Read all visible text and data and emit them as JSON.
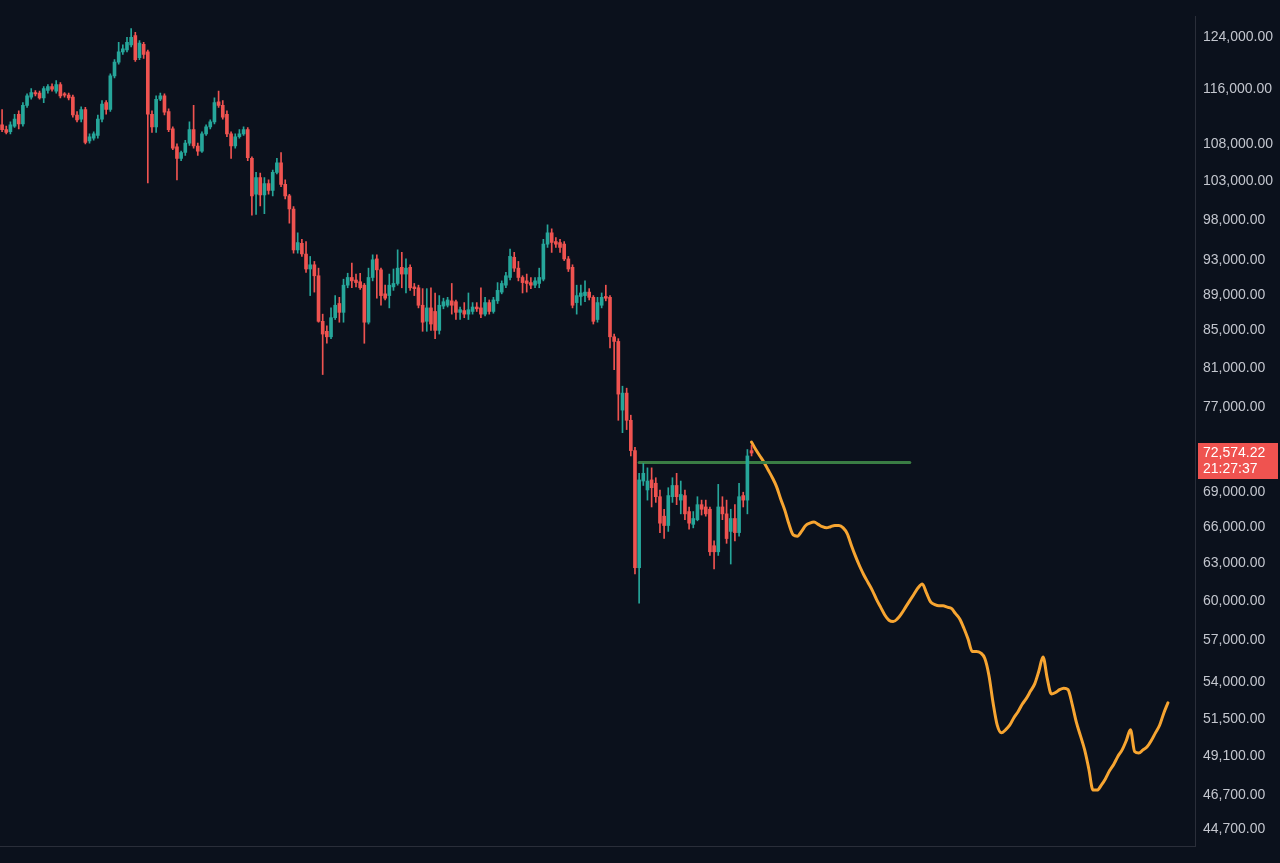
{
  "chart_data": {
    "type": "candlestick",
    "categories": [
      null,
      null,
      null,
      null,
      null,
      null,
      null,
      null,
      null,
      null,
      null,
      null,
      null,
      null,
      null,
      null,
      null,
      null,
      null,
      null,
      null,
      null,
      null,
      null,
      null,
      null,
      null,
      null,
      null,
      null,
      null,
      null,
      null,
      null,
      null,
      null,
      null,
      null,
      null,
      null,
      null,
      null,
      null,
      null,
      null,
      null,
      null,
      null,
      null,
      null,
      null,
      null,
      null,
      null,
      null,
      null,
      null,
      null,
      null,
      null,
      null,
      null,
      null,
      null,
      null,
      null,
      null,
      null,
      null,
      null,
      null,
      null,
      null,
      null,
      null,
      null,
      null,
      null,
      null,
      null,
      null,
      null,
      null,
      null,
      null,
      null,
      null,
      null,
      null,
      null,
      null,
      null,
      null,
      null,
      null,
      null,
      null,
      null,
      null,
      null,
      null,
      null,
      null,
      null,
      null,
      null,
      null,
      null,
      null,
      null,
      null,
      null,
      null,
      null,
      null,
      null,
      null,
      null,
      null,
      null,
      null,
      null,
      null,
      null,
      null,
      null,
      null,
      null,
      null,
      null,
      null,
      null,
      null,
      null,
      null,
      null,
      null,
      null,
      null,
      null,
      null,
      null,
      null,
      null,
      null,
      null,
      null,
      null,
      null,
      null,
      null,
      null,
      null,
      null,
      null,
      null,
      null,
      null,
      null,
      null,
      null,
      null,
      null,
      null,
      null,
      null,
      null,
      null,
      null,
      null,
      null,
      null,
      null,
      null,
      null,
      null,
      null,
      null,
      null,
      null,
      null,
      null,
      null,
      null,
      null,
      null,
      null,
      null,
      null,
      null,
      null,
      null,
      null,
      null,
      null,
      null,
      null,
      null,
      null,
      null,
      null,
      null,
      null,
      null,
      null,
      null,
      null,
      null,
      null,
      null,
      null,
      null,
      null,
      null,
      null,
      null,
      null,
      null,
      null,
      null,
      null,
      null,
      null,
      null,
      null,
      null,
      null,
      null,
      null,
      null,
      null,
      null,
      null,
      null,
      null,
      null,
      null,
      null,
      null,
      null,
      null,
      null,
      null,
      null,
      null,
      null,
      null,
      null,
      null,
      null,
      null,
      null,
      null,
      null,
      null,
      null,
      null,
      null,
      null,
      null,
      null,
      null,
      null,
      null,
      null,
      null,
      null,
      null,
      null,
      null,
      null,
      null,
      null,
      null,
      null,
      null,
      null,
      null,
      null,
      null,
      null,
      null,
      null,
      null,
      null,
      null,
      null
    ],
    "ohlc": [
      [
        110800,
        113000,
        109800,
        110100
      ],
      [
        110100,
        110600,
        109500,
        109700
      ],
      [
        109800,
        111200,
        109500,
        110800
      ],
      [
        110600,
        112300,
        110400,
        111600
      ],
      [
        112300,
        112800,
        110200,
        110900
      ],
      [
        110900,
        114000,
        110600,
        113600
      ],
      [
        113600,
        115300,
        113300,
        115000
      ],
      [
        114800,
        116100,
        114500,
        115500
      ],
      [
        115500,
        115800,
        115000,
        115300
      ],
      [
        115400,
        115700,
        114500,
        114700
      ],
      [
        114700,
        116400,
        114000,
        116100
      ],
      [
        115800,
        116700,
        115400,
        116400
      ],
      [
        116400,
        116800,
        115700,
        116000
      ],
      [
        115700,
        117300,
        115400,
        116700
      ],
      [
        116700,
        117000,
        114700,
        115000
      ],
      [
        115300,
        115500,
        114800,
        115100
      ],
      [
        115100,
        115400,
        114400,
        114700
      ],
      [
        114800,
        115100,
        111900,
        112200
      ],
      [
        112200,
        112700,
        111200,
        111500
      ],
      [
        111600,
        113400,
        111200,
        113000
      ],
      [
        113000,
        113300,
        108100,
        108300
      ],
      [
        108500,
        109500,
        108200,
        109100
      ],
      [
        108900,
        109800,
        108600,
        109500
      ],
      [
        109300,
        112200,
        108900,
        111600
      ],
      [
        111600,
        114300,
        111200,
        113800
      ],
      [
        114000,
        114300,
        112300,
        113000
      ],
      [
        113000,
        118300,
        112700,
        118000
      ],
      [
        118000,
        120500,
        117700,
        120100
      ],
      [
        120100,
        123200,
        119800,
        121700
      ],
      [
        121700,
        122800,
        121300,
        122200
      ],
      [
        122000,
        124000,
        121700,
        123200
      ],
      [
        122800,
        125400,
        122500,
        124000
      ],
      [
        124300,
        124800,
        120200,
        120500
      ],
      [
        120800,
        123500,
        120500,
        123100
      ],
      [
        122900,
        123200,
        120700,
        121300
      ],
      [
        121700,
        122000,
        102800,
        112300
      ],
      [
        112300,
        112800,
        109700,
        110500
      ],
      [
        110500,
        115000,
        109700,
        114500
      ],
      [
        114500,
        115400,
        114300,
        115000
      ],
      [
        115000,
        115300,
        112200,
        112600
      ],
      [
        112700,
        113100,
        109800,
        110100
      ],
      [
        110200,
        110500,
        107300,
        107500
      ],
      [
        107700,
        108100,
        103200,
        106100
      ],
      [
        106100,
        107100,
        105800,
        106900
      ],
      [
        106900,
        108600,
        106500,
        108200
      ],
      [
        108200,
        111200,
        107900,
        110100
      ],
      [
        110100,
        113600,
        107500,
        107800
      ],
      [
        107800,
        108200,
        106500,
        107100
      ],
      [
        107100,
        109800,
        106900,
        109500
      ],
      [
        109500,
        110800,
        109300,
        110500
      ],
      [
        110500,
        111500,
        110200,
        111200
      ],
      [
        111200,
        114700,
        110900,
        114000
      ],
      [
        114100,
        115700,
        113300,
        113600
      ],
      [
        113600,
        114300,
        111600,
        111900
      ],
      [
        112300,
        112800,
        109100,
        109500
      ],
      [
        109500,
        109800,
        106100,
        107800
      ],
      [
        107800,
        109500,
        107500,
        109100
      ],
      [
        109100,
        110100,
        108900,
        109500
      ],
      [
        109500,
        110500,
        109300,
        110100
      ],
      [
        110100,
        110400,
        105800,
        106200
      ],
      [
        106100,
        106300,
        98600,
        101100
      ],
      [
        101300,
        104200,
        98700,
        103500
      ],
      [
        103500,
        104100,
        99800,
        101200
      ],
      [
        101200,
        103500,
        98800,
        102700
      ],
      [
        102700,
        103200,
        101300,
        101800
      ],
      [
        101800,
        104500,
        101100,
        104200
      ],
      [
        104200,
        106100,
        104000,
        105500
      ],
      [
        105500,
        106900,
        102300,
        102600
      ],
      [
        102600,
        103200,
        100700,
        101100
      ],
      [
        101100,
        101300,
        97600,
        99400
      ],
      [
        99400,
        99700,
        93900,
        94300
      ],
      [
        94300,
        96400,
        93900,
        95200
      ],
      [
        95100,
        95600,
        93500,
        93800
      ],
      [
        93800,
        95300,
        91600,
        92000
      ],
      [
        92000,
        93500,
        88900,
        92500
      ],
      [
        92500,
        92900,
        89300,
        91200
      ],
      [
        91200,
        92100,
        85900,
        86000
      ],
      [
        86000,
        86800,
        80300,
        84600
      ],
      [
        84900,
        85500,
        83600,
        84300
      ],
      [
        84300,
        87500,
        84100,
        86400
      ],
      [
        86400,
        88900,
        86200,
        87800
      ],
      [
        88000,
        88700,
        85900,
        87000
      ],
      [
        87000,
        90800,
        85900,
        90100
      ],
      [
        90100,
        91500,
        89800,
        91000
      ],
      [
        91000,
        92700,
        89800,
        90600
      ],
      [
        90700,
        91400,
        89900,
        90400
      ],
      [
        90500,
        91500,
        89600,
        89800
      ],
      [
        90100,
        90300,
        83600,
        85900
      ],
      [
        85900,
        92100,
        85700,
        91000
      ],
      [
        91000,
        93700,
        90600,
        93100
      ],
      [
        93200,
        93700,
        88600,
        91900
      ],
      [
        91900,
        92100,
        87800,
        88900
      ],
      [
        89100,
        90100,
        88400,
        88600
      ],
      [
        88900,
        91400,
        87500,
        90100
      ],
      [
        89900,
        92000,
        89500,
        90300
      ],
      [
        90300,
        94300,
        90100,
        92100
      ],
      [
        92200,
        94000,
        89800,
        91400
      ],
      [
        91400,
        93200,
        89200,
        92100
      ],
      [
        92200,
        92500,
        89500,
        89800
      ],
      [
        89900,
        90300,
        88900,
        89700
      ],
      [
        89800,
        90100,
        87500,
        87800
      ],
      [
        87800,
        89700,
        84900,
        85900
      ],
      [
        86000,
        89700,
        84900,
        87500
      ],
      [
        87500,
        89800,
        85000,
        85700
      ],
      [
        87100,
        89200,
        84100,
        85000
      ],
      [
        85000,
        88900,
        84600,
        87800
      ],
      [
        87700,
        88600,
        87400,
        88200
      ],
      [
        87800,
        88700,
        87600,
        88400
      ],
      [
        88300,
        90300,
        86800,
        87800
      ],
      [
        88200,
        88400,
        86200,
        87000
      ],
      [
        87000,
        87600,
        86200,
        87300
      ],
      [
        87200,
        88100,
        86400,
        86800
      ],
      [
        86800,
        89200,
        86200,
        87300
      ],
      [
        87100,
        88100,
        86800,
        87600
      ],
      [
        87600,
        88100,
        87100,
        87400
      ],
      [
        87500,
        89800,
        86400,
        86800
      ],
      [
        86800,
        88700,
        86600,
        88100
      ],
      [
        88100,
        88400,
        86800,
        87100
      ],
      [
        87100,
        88700,
        86900,
        88400
      ],
      [
        88300,
        90400,
        88000,
        89500
      ],
      [
        89300,
        90600,
        89100,
        90300
      ],
      [
        90100,
        91600,
        89800,
        91200
      ],
      [
        91000,
        94400,
        90700,
        93500
      ],
      [
        93400,
        94000,
        91700,
        92100
      ],
      [
        92100,
        92900,
        90600,
        91000
      ],
      [
        91000,
        91200,
        89200,
        90400
      ],
      [
        90600,
        91400,
        89300,
        90300
      ],
      [
        90400,
        91000,
        89700,
        90100
      ],
      [
        90100,
        91000,
        89800,
        90600
      ],
      [
        90300,
        92100,
        89800,
        91000
      ],
      [
        90800,
        95600,
        90600,
        95000
      ],
      [
        95000,
        97400,
        94600,
        96400
      ],
      [
        96400,
        96900,
        94000,
        95200
      ],
      [
        95300,
        95800,
        94600,
        95000
      ],
      [
        95200,
        95600,
        94000,
        94600
      ],
      [
        95000,
        95300,
        93000,
        93200
      ],
      [
        93200,
        93500,
        91700,
        92000
      ],
      [
        92200,
        92500,
        87500,
        87800
      ],
      [
        88100,
        90100,
        86800,
        88900
      ],
      [
        88800,
        90100,
        87800,
        89200
      ],
      [
        88900,
        90600,
        88200,
        89300
      ],
      [
        89300,
        89700,
        88400,
        88700
      ],
      [
        88700,
        88900,
        85700,
        86000
      ],
      [
        86200,
        88700,
        85900,
        88100
      ],
      [
        87800,
        89200,
        87500,
        88700
      ],
      [
        88800,
        90100,
        88300,
        88600
      ],
      [
        88700,
        88900,
        83100,
        84300
      ],
      [
        84300,
        84600,
        80800,
        83800
      ],
      [
        83800,
        84100,
        75700,
        78300
      ],
      [
        76700,
        79100,
        74500,
        78400
      ],
      [
        78400,
        78900,
        74800,
        75700
      ],
      [
        75700,
        76200,
        72300,
        72800
      ],
      [
        72800,
        73100,
        62100,
        62600
      ],
      [
        62600,
        70700,
        59800,
        70100
      ],
      [
        70000,
        71600,
        69600,
        70700
      ],
      [
        69200,
        71200,
        68300,
        70000
      ],
      [
        70100,
        71200,
        67700,
        69400
      ],
      [
        69800,
        70300,
        68100,
        68600
      ],
      [
        68600,
        69200,
        65500,
        66300
      ],
      [
        66900,
        67500,
        65000,
        66100
      ],
      [
        66100,
        69400,
        65600,
        68700
      ],
      [
        68600,
        70300,
        68100,
        69600
      ],
      [
        69600,
        70700,
        67900,
        68600
      ],
      [
        68300,
        70000,
        67100,
        68800
      ],
      [
        68700,
        69200,
        66600,
        67100
      ],
      [
        67300,
        67700,
        65800,
        66300
      ],
      [
        66200,
        67300,
        65900,
        66700
      ],
      [
        66600,
        68600,
        66500,
        67900
      ],
      [
        67900,
        68300,
        67000,
        67500
      ],
      [
        67700,
        68300,
        66900,
        67100
      ],
      [
        67500,
        67700,
        63600,
        63900
      ],
      [
        64400,
        64800,
        62500,
        63900
      ],
      [
        63900,
        69700,
        63600,
        67700
      ],
      [
        67700,
        68600,
        66600,
        67100
      ],
      [
        67100,
        68300,
        64600,
        65000
      ],
      [
        65600,
        67500,
        62900,
        66700
      ],
      [
        66700,
        67900,
        64800,
        65500
      ],
      [
        65500,
        69800,
        65200,
        68600
      ],
      [
        68700,
        69000,
        67700,
        68300
      ],
      [
        68300,
        72900,
        67100,
        72300
      ],
      [
        72800,
        73300,
        72300,
        72574.22
      ],
      null,
      null,
      null,
      null,
      null,
      null,
      null,
      null,
      null,
      null,
      null,
      null,
      null,
      null,
      null,
      null,
      null,
      null,
      null,
      null,
      null,
      null,
      null,
      null,
      null,
      null,
      null,
      null,
      null,
      null,
      null,
      null,
      null,
      null,
      null,
      null,
      null,
      null,
      null,
      null,
      null,
      null,
      null,
      null,
      null,
      null,
      null,
      null,
      null,
      null,
      null,
      null,
      null,
      null,
      null,
      null,
      null,
      null,
      null,
      null,
      null,
      null,
      null,
      null,
      null,
      null,
      null,
      null,
      null,
      null,
      null,
      null,
      null,
      null,
      null,
      null,
      null,
      null,
      null,
      null,
      null,
      null,
      null,
      null,
      null,
      null,
      null,
      null,
      null,
      null,
      null,
      null,
      null,
      null,
      null,
      null,
      null,
      null,
      null,
      null,
      null,
      null,
      null,
      null,
      null,
      null
    ],
    "colors": [
      "#ef5350",
      "#ef5350",
      "#26a69a",
      "#26a69a",
      "#ef5350",
      "#26a69a",
      "#26a69a",
      "#26a69a",
      "#ef5350",
      "#ef5350",
      "#26a69a",
      "#26a69a",
      "#ef5350",
      "#26a69a",
      "#ef5350",
      "#ef5350",
      "#ef5350",
      "#ef5350",
      "#ef5350",
      "#26a69a",
      "#ef5350",
      "#26a69a",
      "#26a69a",
      "#26a69a",
      "#26a69a",
      "#ef5350",
      "#26a69a",
      "#26a69a",
      "#26a69a",
      "#26a69a",
      "#26a69a",
      "#26a69a",
      "#ef5350",
      "#26a69a",
      "#ef5350",
      "#ef5350",
      "#ef5350",
      "#26a69a",
      "#26a69a",
      "#ef5350",
      "#ef5350",
      "#ef5350",
      "#ef5350",
      "#26a69a",
      "#26a69a",
      "#26a69a",
      "#ef5350",
      "#ef5350",
      "#26a69a",
      "#26a69a",
      "#26a69a",
      "#26a69a",
      "#ef5350",
      "#ef5350",
      "#ef5350",
      "#ef5350",
      "#26a69a",
      "#26a69a",
      "#26a69a",
      "#ef5350",
      "#ef5350",
      "#26a69a",
      "#ef5350",
      "#26a69a",
      "#ef5350",
      "#26a69a",
      "#26a69a",
      "#ef5350",
      "#ef5350",
      "#ef5350",
      "#ef5350",
      "#26a69a",
      "#ef5350",
      "#ef5350",
      "#26a69a",
      "#ef5350",
      "#ef5350",
      "#ef5350",
      "#ef5350",
      "#26a69a",
      "#26a69a",
      "#ef5350",
      "#26a69a",
      "#26a69a",
      "#ef5350",
      "#ef5350",
      "#ef5350",
      "#ef5350",
      "#26a69a",
      "#26a69a",
      "#ef5350",
      "#ef5350",
      "#ef5350",
      "#26a69a",
      "#26a69a",
      "#26a69a",
      "#ef5350",
      "#26a69a",
      "#ef5350",
      "#ef5350",
      "#ef5350",
      "#ef5350",
      "#26a69a",
      "#ef5350",
      "#ef5350",
      "#26a69a",
      "#26a69a",
      "#26a69a",
      "#ef5350",
      "#ef5350",
      "#26a69a",
      "#ef5350",
      "#26a69a",
      "#26a69a",
      "#ef5350",
      "#ef5350",
      "#26a69a",
      "#ef5350",
      "#26a69a",
      "#26a69a",
      "#26a69a",
      "#26a69a",
      "#26a69a",
      "#ef5350",
      "#ef5350",
      "#ef5350",
      "#ef5350",
      "#ef5350",
      "#26a69a",
      "#26a69a",
      "#26a69a",
      "#26a69a",
      "#ef5350",
      "#ef5350",
      "#ef5350",
      "#ef5350",
      "#ef5350",
      "#ef5350",
      "#26a69a",
      "#26a69a",
      "#26a69a",
      "#ef5350",
      "#ef5350",
      "#26a69a",
      "#26a69a",
      "#ef5350",
      "#ef5350",
      "#ef5350",
      "#ef5350",
      "#26a69a",
      "#ef5350",
      "#ef5350",
      "#ef5350",
      "#26a69a",
      "#26a69a",
      "#26a69a",
      "#ef5350",
      "#ef5350",
      "#ef5350",
      "#ef5350",
      "#26a69a",
      "#26a69a",
      "#ef5350",
      "#26a69a",
      "#ef5350",
      "#ef5350",
      "#26a69a",
      "#26a69a",
      "#ef5350",
      "#ef5350",
      "#ef5350",
      "#ef5350",
      "#26a69a",
      "#ef5350",
      "#ef5350",
      "#26a69a",
      "#ef5350",
      "#26a69a",
      "#ef5350",
      "#26a69a",
      "#ef5350",
      null,
      null,
      null,
      null,
      null,
      null,
      null,
      null,
      null,
      null,
      null,
      null,
      null,
      null,
      null,
      null,
      null,
      null,
      null,
      null,
      null,
      null,
      null,
      null,
      null,
      null,
      null,
      null,
      null,
      null,
      null,
      null,
      null,
      null,
      null,
      null,
      null,
      null,
      null,
      null,
      null,
      null,
      null,
      null,
      null,
      null,
      null,
      null,
      null,
      null,
      null,
      null,
      null,
      null,
      null,
      null,
      null,
      null,
      null,
      null,
      null,
      null,
      null,
      null,
      null,
      null,
      null,
      null,
      null,
      null,
      null,
      null,
      null,
      null,
      null,
      null,
      null,
      null,
      null,
      null,
      null,
      null,
      null,
      null,
      null,
      null,
      null,
      null,
      null,
      null,
      null,
      null,
      null,
      null,
      null,
      null,
      null,
      null,
      null,
      null,
      null,
      null,
      null,
      null,
      null,
      null
    ],
    "series": [
      {
        "type": "line",
        "color": "#3a7d44",
        "values": [
          null,
          null,
          null,
          null,
          null,
          null,
          null,
          null,
          null,
          null,
          null,
          null,
          null,
          null,
          null,
          null,
          null,
          null,
          null,
          null,
          null,
          null,
          null,
          null,
          null,
          null,
          null,
          null,
          null,
          null,
          null,
          null,
          null,
          null,
          null,
          null,
          null,
          null,
          null,
          null,
          null,
          null,
          null,
          null,
          null,
          null,
          null,
          null,
          null,
          null,
          null,
          null,
          null,
          null,
          null,
          null,
          null,
          null,
          null,
          null,
          null,
          null,
          null,
          null,
          null,
          null,
          null,
          null,
          null,
          null,
          null,
          null,
          null,
          null,
          null,
          null,
          null,
          null,
          null,
          null,
          null,
          null,
          null,
          null,
          null,
          null,
          null,
          null,
          null,
          null,
          null,
          null,
          null,
          null,
          null,
          null,
          null,
          null,
          null,
          null,
          null,
          null,
          null,
          null,
          null,
          null,
          null,
          null,
          null,
          null,
          null,
          null,
          null,
          null,
          null,
          null,
          null,
          null,
          null,
          null,
          null,
          null,
          null,
          null,
          null,
          null,
          null,
          null,
          null,
          null,
          null,
          null,
          null,
          null,
          null,
          null,
          null,
          null,
          null,
          null,
          null,
          null,
          null,
          null,
          null,
          null,
          null,
          null,
          null,
          null,
          null,
          null,
          null,
          71700,
          71700,
          71700,
          71700,
          71700,
          71700,
          71700,
          71700,
          71700,
          71700,
          71700,
          71700,
          71700,
          71700,
          71700,
          71700,
          71700,
          71700,
          71700,
          71700,
          71700,
          71700,
          71700,
          71700,
          71700,
          71700,
          71700,
          71700,
          71700,
          71700,
          71700,
          71700,
          71700,
          71700,
          71700,
          71700,
          71700,
          71700,
          71700,
          71700,
          71700,
          71700,
          71700,
          71700,
          71700,
          71700,
          71700,
          71700,
          71700,
          71700,
          71700,
          71700,
          71700,
          71700,
          71700,
          71700,
          71700,
          71700,
          71700,
          71700,
          71700,
          71700,
          71700,
          71700,
          71700,
          71700,
          null,
          null,
          null,
          null,
          null,
          null,
          null,
          null,
          null,
          null,
          null,
          null,
          null,
          null,
          null,
          null,
          null,
          null,
          null,
          null,
          null,
          null,
          null,
          null,
          null,
          null,
          null,
          null,
          null,
          null,
          null,
          null,
          null,
          null,
          null,
          null,
          null,
          null,
          null,
          null,
          null,
          null,
          null,
          null,
          null,
          null,
          null,
          null,
          null,
          null,
          null,
          null,
          null,
          null,
          null,
          null,
          null,
          null,
          null,
          null,
          null,
          null,
          null,
          null,
          null,
          null,
          null,
          null
        ]
      },
      {
        "type": "line",
        "color": "#f7a531",
        "values": [
          null,
          null,
          null,
          null,
          null,
          null,
          null,
          null,
          null,
          null,
          null,
          null,
          null,
          null,
          null,
          null,
          null,
          null,
          null,
          null,
          null,
          null,
          null,
          null,
          null,
          null,
          null,
          null,
          null,
          null,
          null,
          null,
          null,
          null,
          null,
          null,
          null,
          null,
          null,
          null,
          null,
          null,
          null,
          null,
          null,
          null,
          null,
          null,
          null,
          null,
          null,
          null,
          null,
          null,
          null,
          null,
          null,
          null,
          null,
          null,
          null,
          null,
          null,
          null,
          null,
          null,
          null,
          null,
          null,
          null,
          null,
          null,
          null,
          null,
          null,
          null,
          null,
          null,
          null,
          null,
          null,
          null,
          null,
          null,
          null,
          null,
          null,
          null,
          null,
          null,
          null,
          null,
          null,
          null,
          null,
          null,
          null,
          null,
          null,
          null,
          null,
          null,
          null,
          null,
          null,
          null,
          null,
          null,
          null,
          null,
          null,
          null,
          null,
          null,
          null,
          null,
          null,
          null,
          null,
          null,
          null,
          null,
          null,
          null,
          null,
          null,
          null,
          null,
          null,
          null,
          null,
          null,
          null,
          null,
          null,
          null,
          null,
          null,
          null,
          null,
          null,
          null,
          null,
          null,
          null,
          null,
          null,
          null,
          null,
          null,
          null,
          null,
          null,
          null,
          null,
          null,
          null,
          null,
          null,
          null,
          null,
          null,
          null,
          null,
          null,
          null,
          null,
          null,
          null,
          null,
          null,
          null,
          null,
          null,
          null,
          null,
          null,
          null,
          null,
          null,
          73600,
          72900,
          72300,
          71700,
          71000,
          70300,
          69500,
          68400,
          67400,
          66200,
          65300,
          65200,
          65600,
          66100,
          66300,
          66400,
          66200,
          66000,
          65900,
          66000,
          66100,
          66100,
          65900,
          65400,
          64400,
          63500,
          62700,
          62000,
          61400,
          60800,
          60100,
          59500,
          58900,
          58500,
          58400,
          58600,
          59000,
          59500,
          60000,
          60500,
          61000,
          61300,
          60600,
          59900,
          59700,
          59600,
          59600,
          59500,
          59400,
          59000,
          58600,
          57900,
          57100,
          56200,
          56200,
          56100,
          55700,
          54500,
          52600,
          51100,
          50600,
          50800,
          51100,
          51600,
          52000,
          52500,
          52900,
          53400,
          53900,
          54800,
          55800,
          54300,
          53200,
          53300,
          53500,
          53600,
          53500,
          52500,
          51300,
          50400,
          49500,
          48300,
          47000,
          47000,
          47300,
          47700,
          48200,
          48600,
          49100,
          49500,
          50100,
          50800,
          49400,
          49300,
          49500,
          49700,
          50100,
          50600,
          51100,
          51900,
          52600,
          null,
          null,
          null,
          null,
          null,
          null
        ]
      }
    ],
    "log": true,
    "ylim": [
      43700,
      127400
    ],
    "yticks": [
      {
        "value": 124000,
        "label": "124,000.00"
      },
      {
        "value": 116000,
        "label": "116,000.00"
      },
      {
        "value": 108000,
        "label": "108,000.00"
      },
      {
        "value": 103000,
        "label": "103,000.00"
      },
      {
        "value": 98000,
        "label": "98,000.00"
      },
      {
        "value": 93000,
        "label": "93,000.00"
      },
      {
        "value": 89000,
        "label": "89,000.00"
      },
      {
        "value": 85000,
        "label": "85,000.00"
      },
      {
        "value": 81000,
        "label": "81,000.00"
      },
      {
        "value": 77000,
        "label": "77,000.00"
      },
      {
        "value": 69000,
        "label": "69,000.00"
      },
      {
        "value": 66000,
        "label": "66,000.00"
      },
      {
        "value": 63000,
        "label": "63,000.00"
      },
      {
        "value": 60000,
        "label": "60,000.00"
      },
      {
        "value": 57000,
        "label": "57,000.00"
      },
      {
        "value": 54000,
        "label": "54,000.00"
      },
      {
        "value": 51500,
        "label": "51,500.00"
      },
      {
        "value": 49100,
        "label": "49,100.00"
      },
      {
        "value": 46700,
        "label": "46,700.00"
      },
      {
        "value": 44700,
        "label": "44,700.00"
      }
    ],
    "tick_labels": "y",
    "annotations": [
      "72,574.22",
      "21:27:37"
    ]
  }
}
